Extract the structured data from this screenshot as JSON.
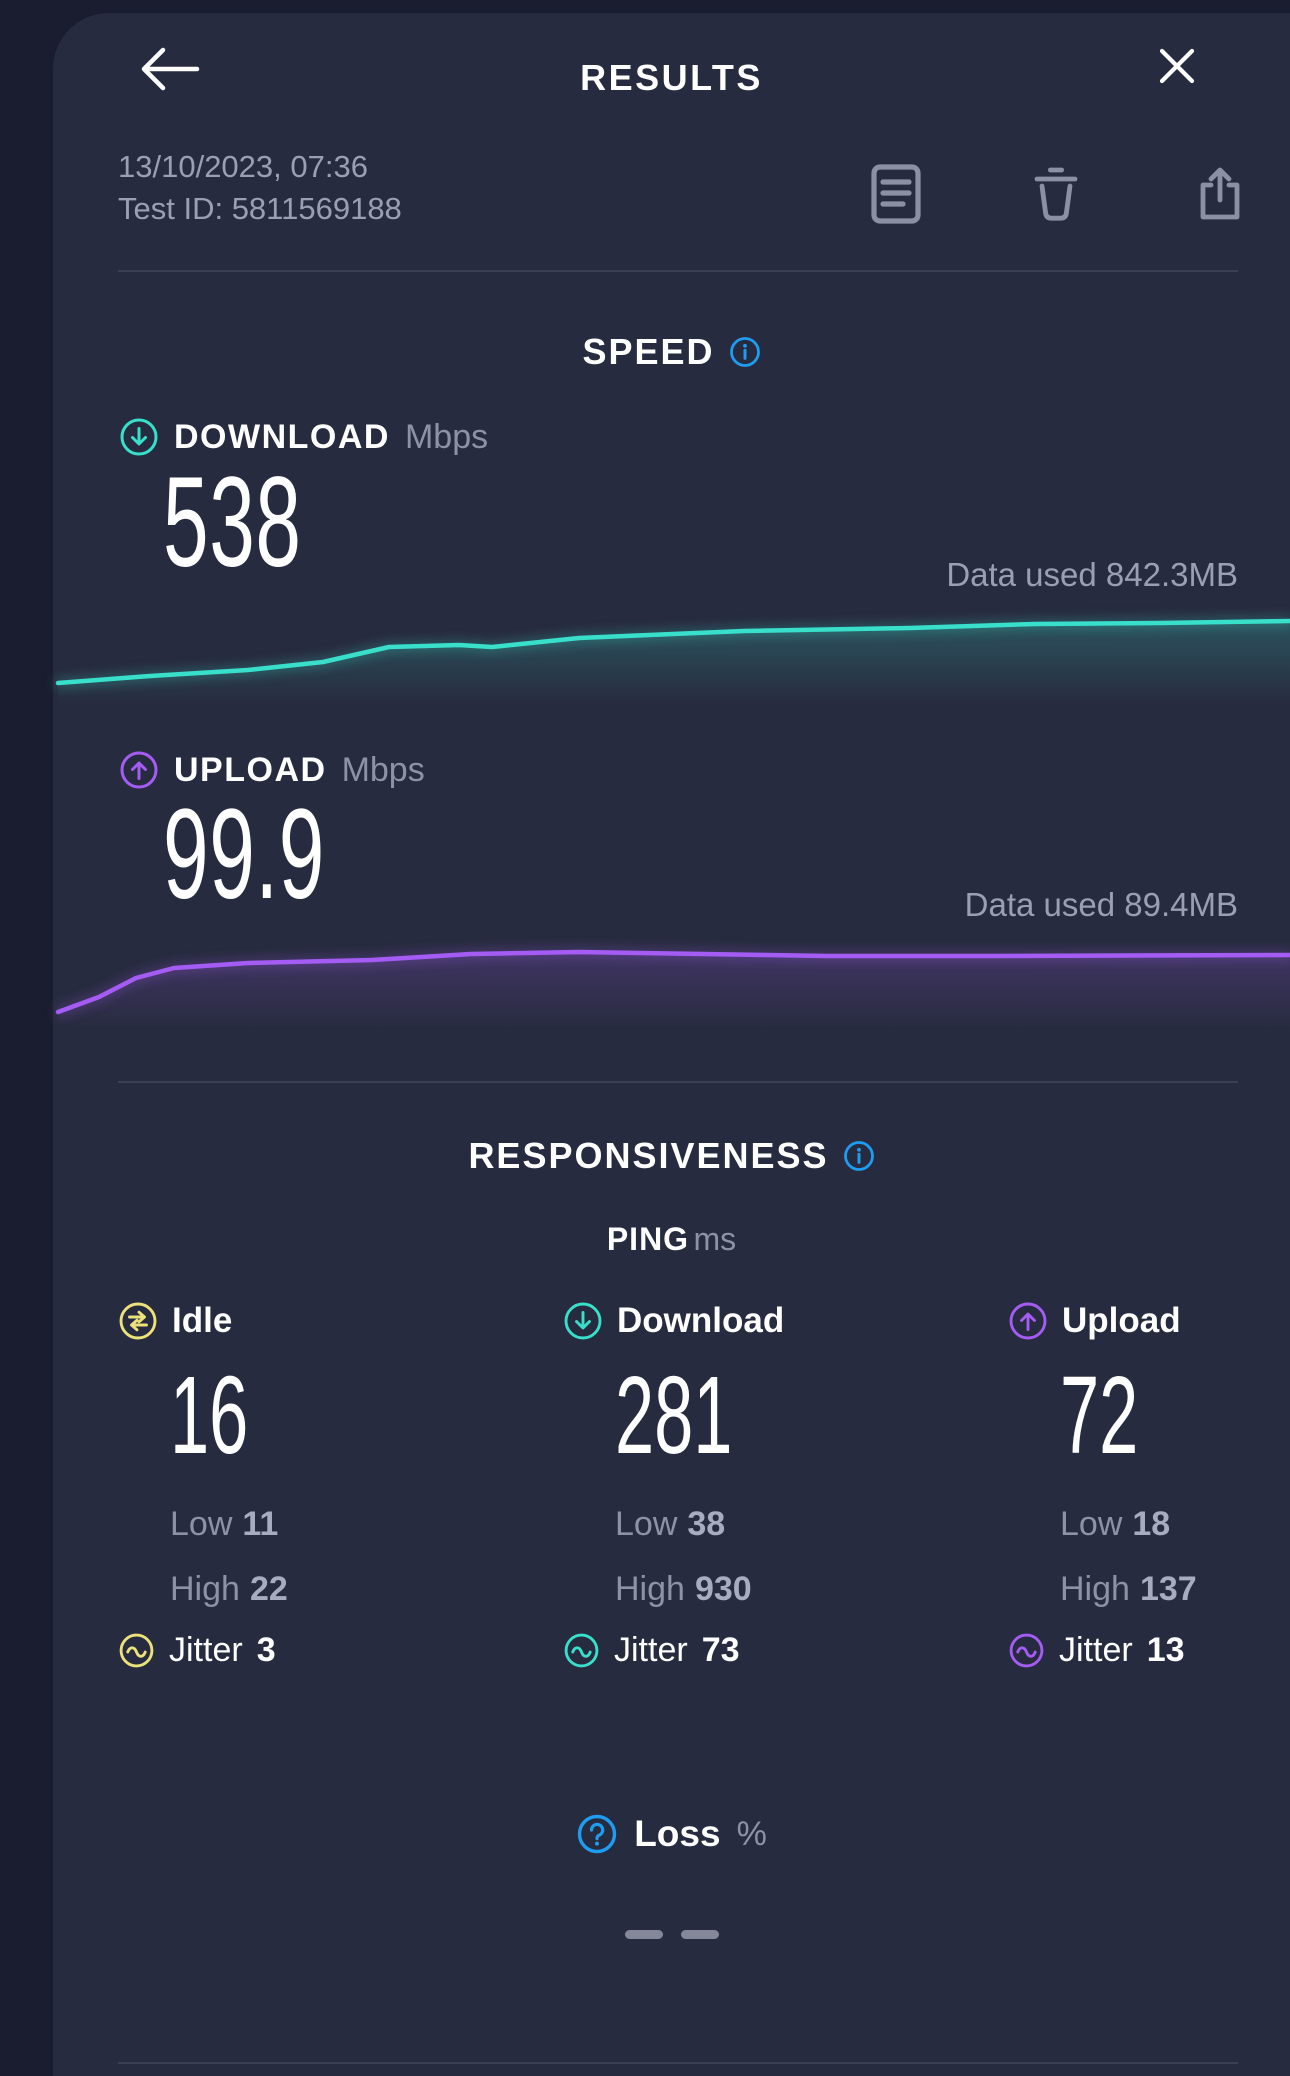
{
  "header": {
    "title": "RESULTS"
  },
  "meta": {
    "datetime": "13/10/2023, 07:36",
    "test_id": "Test ID: 5811569188"
  },
  "actions": {
    "notes_icon": "notes-icon",
    "delete_icon": "trash-icon",
    "share_icon": "share-icon"
  },
  "speed": {
    "section_title": "SPEED",
    "download": {
      "label": "DOWNLOAD",
      "unit": "Mbps",
      "value": "538",
      "data_used": "Data used 842.3MB"
    },
    "upload": {
      "label": "UPLOAD",
      "unit": "Mbps",
      "value": "99.9",
      "data_used": "Data used 89.4MB"
    }
  },
  "responsiveness": {
    "section_title": "RESPONSIVENESS",
    "ping_label": "PING",
    "ping_unit": "ms",
    "columns": [
      {
        "label": "Idle",
        "value": "16",
        "low_label": "Low",
        "low": "11",
        "high_label": "High",
        "high": "22",
        "jitter_label": "Jitter",
        "jitter": "3",
        "color": "#ece17a",
        "icon": "idle-transfer-icon"
      },
      {
        "label": "Download",
        "value": "281",
        "low_label": "Low",
        "low": "38",
        "high_label": "High",
        "high": "930",
        "jitter_label": "Jitter",
        "jitter": "73",
        "color": "#38e0cb",
        "icon": "download-arrow-icon"
      },
      {
        "label": "Upload",
        "value": "72",
        "low_label": "Low",
        "low": "18",
        "high_label": "High",
        "high": "137",
        "jitter_label": "Jitter",
        "jitter": "13",
        "color": "#a55cf5",
        "icon": "upload-arrow-icon"
      }
    ],
    "loss": {
      "label": "Loss",
      "unit": "%",
      "value": "— —"
    }
  },
  "colors": {
    "page_bg": "#1a1d2f",
    "card_bg": "#272b3f",
    "divider": "#3b3f53",
    "accent_teal": "#38e0cb",
    "accent_purple": "#a55cf5",
    "accent_blue": "#1e9cf0",
    "accent_yellow": "#ece17a",
    "text_gray": "#9aa0b2",
    "icon_gray": "#8c90a4"
  },
  "chart_data": [
    {
      "type": "line",
      "metric": "download-speed-over-time",
      "unit": "Mbps",
      "final_value": 538,
      "color": "#38e0cb",
      "legend": "none",
      "grid": false,
      "axes": false,
      "points": [
        [
          58,
          108
        ],
        [
          150,
          101
        ],
        [
          248,
          95
        ],
        [
          323,
          87
        ],
        [
          389,
          72
        ],
        [
          459,
          70
        ],
        [
          492,
          72
        ],
        [
          579,
          63
        ],
        [
          744,
          56
        ],
        [
          910,
          53
        ],
        [
          1034,
          49
        ],
        [
          1160,
          48
        ],
        [
          1290,
          46
        ]
      ]
    },
    {
      "type": "line",
      "metric": "upload-speed-over-time",
      "unit": "Mbps",
      "final_value": 99.9,
      "color": "#a55cf5",
      "legend": "none",
      "grid": false,
      "axes": false,
      "points": [
        [
          58,
          112
        ],
        [
          99,
          97
        ],
        [
          136,
          78
        ],
        [
          174,
          68
        ],
        [
          248,
          63
        ],
        [
          372,
          60
        ],
        [
          471,
          54
        ],
        [
          579,
          52
        ],
        [
          703,
          54
        ],
        [
          827,
          56
        ],
        [
          992,
          56
        ],
        [
          1290,
          55
        ]
      ]
    }
  ]
}
